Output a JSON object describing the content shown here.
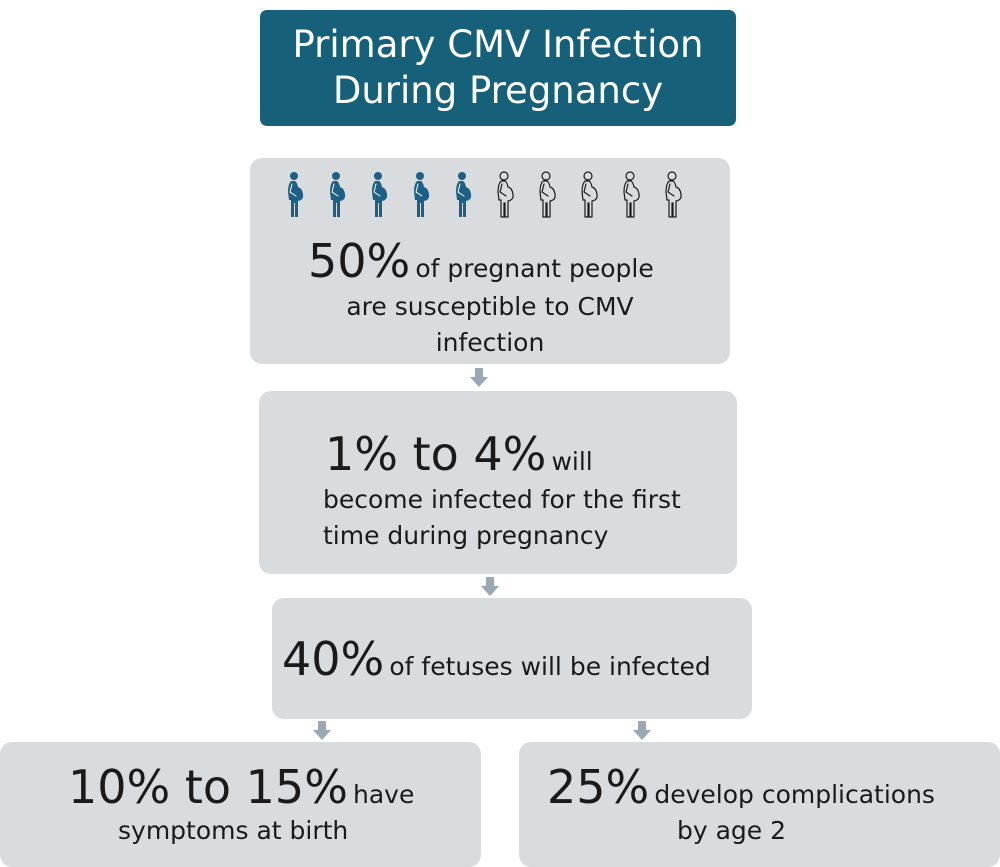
{
  "title": {
    "line1": "Primary CMV Infection",
    "line2": "During Pregnancy"
  },
  "icons": {
    "name": "pregnant-person-icon",
    "filled_count": 5,
    "outline_count": 5,
    "filled_color": "#1d5f85",
    "outline_color": "#1a1a1a"
  },
  "colors": {
    "title_bg": "#16607a",
    "box_bg": "#d8dcdf",
    "arrow": "#9aa7b4"
  },
  "steps": [
    {
      "big": "50%",
      "small1": "of pregnant people",
      "small2": "are susceptible to CMV",
      "small3": "infection"
    },
    {
      "big": "1% to 4%",
      "small1": "will",
      "small2": "become infected for the first",
      "small3": "time during pregnancy"
    },
    {
      "big": "40%",
      "small1": "of fetuses will be infected"
    },
    {
      "big": "10% to 15%",
      "small1": "have",
      "small2": "symptoms at birth"
    },
    {
      "big": "25%",
      "small1": "develop complications",
      "small2": "by age 2"
    }
  ]
}
